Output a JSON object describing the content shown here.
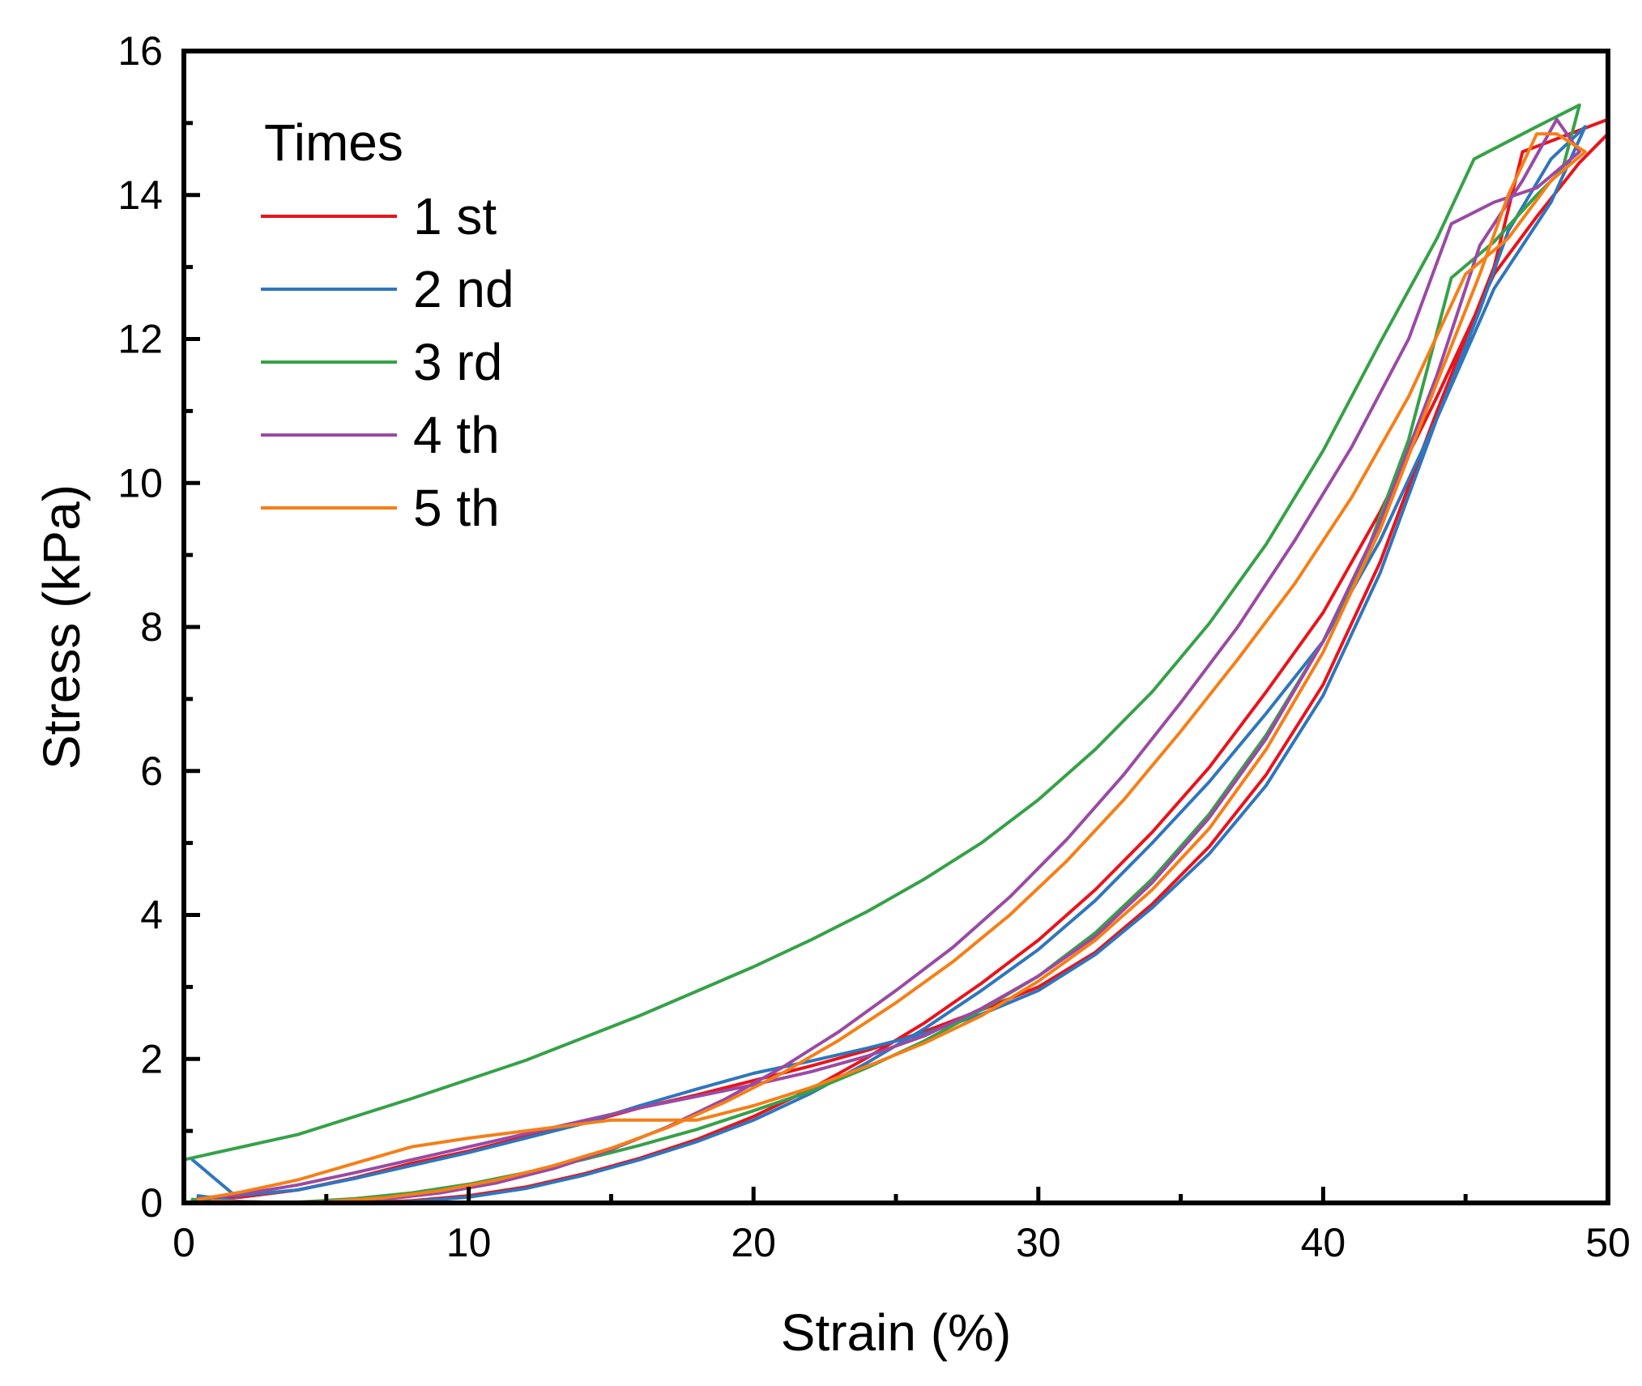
{
  "chart_data": {
    "type": "line",
    "xlabel": "Strain (%)",
    "ylabel": "Stress (kPa)",
    "xlim": [
      0,
      50
    ],
    "ylim": [
      0,
      16
    ],
    "x_ticks": [
      "0",
      "10",
      "20",
      "30",
      "40",
      "50"
    ],
    "y_ticks": [
      "0",
      "2",
      "4",
      "6",
      "8",
      "10",
      "12",
      "14",
      "16"
    ],
    "grid": false,
    "legend_placement": "top-left",
    "legend_title": "Times",
    "series": [
      {
        "name": "1 st",
        "color": "#e8141c",
        "points": [
          [
            0.5,
            0.08
          ],
          [
            2.0,
            0.08
          ],
          [
            4.0,
            0.18
          ],
          [
            6.0,
            0.35
          ],
          [
            8.0,
            0.55
          ],
          [
            10.0,
            0.72
          ],
          [
            12.0,
            0.92
          ],
          [
            14.0,
            1.1
          ],
          [
            16.0,
            1.32
          ],
          [
            18.0,
            1.5
          ],
          [
            20.0,
            1.7
          ],
          [
            22.0,
            1.9
          ],
          [
            24.0,
            2.12
          ],
          [
            26.0,
            2.38
          ],
          [
            28.0,
            2.68
          ],
          [
            30.0,
            3.0
          ],
          [
            32.0,
            3.48
          ],
          [
            34.0,
            4.15
          ],
          [
            36.0,
            4.95
          ],
          [
            38.0,
            5.95
          ],
          [
            40.0,
            7.2
          ],
          [
            42.0,
            8.9
          ],
          [
            44.0,
            11.0
          ],
          [
            46.0,
            13.0
          ],
          [
            47.0,
            14.6
          ],
          [
            48.0,
            14.75
          ],
          [
            49.0,
            14.9
          ],
          [
            50.0,
            15.05
          ],
          [
            50.0,
            14.85
          ],
          [
            49.0,
            14.45
          ],
          [
            47.5,
            13.7
          ],
          [
            46.0,
            12.9
          ],
          [
            44.0,
            11.2
          ],
          [
            42.0,
            9.6
          ],
          [
            40.0,
            8.2
          ],
          [
            38.0,
            7.1
          ],
          [
            36.0,
            6.05
          ],
          [
            34.0,
            5.15
          ],
          [
            32.0,
            4.35
          ],
          [
            30.0,
            3.65
          ],
          [
            28.0,
            3.05
          ],
          [
            26.0,
            2.5
          ],
          [
            24.0,
            2.02
          ],
          [
            22.0,
            1.58
          ],
          [
            20.0,
            1.2
          ],
          [
            18.0,
            0.88
          ],
          [
            16.0,
            0.62
          ],
          [
            14.0,
            0.4
          ],
          [
            12.0,
            0.22
          ],
          [
            10.0,
            0.1
          ],
          [
            8.0,
            0.03
          ],
          [
            6.0,
            0.0
          ],
          [
            4.0,
            0.0
          ],
          [
            2.0,
            0.02
          ],
          [
            0.5,
            0.05
          ]
        ]
      },
      {
        "name": "2 nd",
        "color": "#2f76bd",
        "points": [
          [
            0.3,
            0.6
          ],
          [
            1.8,
            0.1
          ],
          [
            4.0,
            0.18
          ],
          [
            6.0,
            0.34
          ],
          [
            8.0,
            0.52
          ],
          [
            10.0,
            0.7
          ],
          [
            12.0,
            0.9
          ],
          [
            14.0,
            1.1
          ],
          [
            16.0,
            1.35
          ],
          [
            18.0,
            1.58
          ],
          [
            20.0,
            1.8
          ],
          [
            22.0,
            1.97
          ],
          [
            24.0,
            2.15
          ],
          [
            26.0,
            2.35
          ],
          [
            28.0,
            2.62
          ],
          [
            30.0,
            2.95
          ],
          [
            32.0,
            3.45
          ],
          [
            34.0,
            4.1
          ],
          [
            36.0,
            4.85
          ],
          [
            38.0,
            5.8
          ],
          [
            40.0,
            7.05
          ],
          [
            42.0,
            8.75
          ],
          [
            44.0,
            10.9
          ],
          [
            46.0,
            12.7
          ],
          [
            48.0,
            13.9
          ],
          [
            49.2,
            14.95
          ],
          [
            49.2,
            14.95
          ],
          [
            48.0,
            14.5
          ],
          [
            46.5,
            13.5
          ],
          [
            45.5,
            12.4
          ],
          [
            44.0,
            10.9
          ],
          [
            42.0,
            9.2
          ],
          [
            40.0,
            7.8
          ],
          [
            38.0,
            6.8
          ],
          [
            36.0,
            5.85
          ],
          [
            34.0,
            5.0
          ],
          [
            32.0,
            4.2
          ],
          [
            30.0,
            3.52
          ],
          [
            28.0,
            2.95
          ],
          [
            26.0,
            2.42
          ],
          [
            24.0,
            1.95
          ],
          [
            22.0,
            1.52
          ],
          [
            20.0,
            1.15
          ],
          [
            18.0,
            0.85
          ],
          [
            16.0,
            0.6
          ],
          [
            14.0,
            0.38
          ],
          [
            12.0,
            0.2
          ],
          [
            10.0,
            0.08
          ],
          [
            8.0,
            0.02
          ],
          [
            6.0,
            0.0
          ],
          [
            3.5,
            0.0
          ],
          [
            2.0,
            0.02
          ],
          [
            0.5,
            0.1
          ]
        ]
      },
      {
        "name": "3 rd",
        "color": "#36a148",
        "points": [
          [
            0.0,
            0.6
          ],
          [
            4.0,
            0.95
          ],
          [
            8.0,
            1.45
          ],
          [
            12.0,
            1.98
          ],
          [
            16.0,
            2.6
          ],
          [
            20.0,
            3.28
          ],
          [
            22.0,
            3.65
          ],
          [
            24.0,
            4.05
          ],
          [
            26.0,
            4.5
          ],
          [
            28.0,
            5.0
          ],
          [
            30.0,
            5.6
          ],
          [
            32.0,
            6.3
          ],
          [
            34.0,
            7.1
          ],
          [
            36.0,
            8.05
          ],
          [
            38.0,
            9.15
          ],
          [
            40.0,
            10.45
          ],
          [
            42.0,
            11.95
          ],
          [
            44.0,
            13.4
          ],
          [
            45.3,
            14.5
          ],
          [
            47.5,
            14.95
          ],
          [
            49.0,
            15.25
          ],
          [
            49.0,
            15.25
          ],
          [
            48.4,
            14.35
          ],
          [
            47.5,
            14.0
          ],
          [
            46.0,
            13.35
          ],
          [
            44.5,
            12.85
          ],
          [
            43.0,
            10.6
          ],
          [
            41.5,
            9.0
          ],
          [
            40.0,
            7.8
          ],
          [
            38.0,
            6.5
          ],
          [
            36.0,
            5.4
          ],
          [
            34.0,
            4.5
          ],
          [
            32.0,
            3.75
          ],
          [
            30.0,
            3.15
          ],
          [
            28.0,
            2.68
          ],
          [
            26.0,
            2.25
          ],
          [
            24.0,
            1.88
          ],
          [
            22.0,
            1.55
          ],
          [
            20.0,
            1.28
          ],
          [
            18.0,
            1.02
          ],
          [
            16.0,
            0.8
          ],
          [
            14.0,
            0.6
          ],
          [
            12.0,
            0.42
          ],
          [
            10.0,
            0.26
          ],
          [
            8.0,
            0.14
          ],
          [
            6.0,
            0.06
          ],
          [
            4.0,
            0.01
          ],
          [
            2.0,
            0.0
          ],
          [
            0.3,
            0.05
          ]
        ]
      },
      {
        "name": "4 th",
        "color": "#9a4aa4",
        "points": [
          [
            0.5,
            0.05
          ],
          [
            2.0,
            0.12
          ],
          [
            4.0,
            0.25
          ],
          [
            6.0,
            0.42
          ],
          [
            8.0,
            0.6
          ],
          [
            10.0,
            0.78
          ],
          [
            12.0,
            0.96
          ],
          [
            14.0,
            1.14
          ],
          [
            16.0,
            1.32
          ],
          [
            18.0,
            1.48
          ],
          [
            20.0,
            1.64
          ],
          [
            22.0,
            1.82
          ],
          [
            24.0,
            2.04
          ],
          [
            26.0,
            2.32
          ],
          [
            28.0,
            2.7
          ],
          [
            30.0,
            3.15
          ],
          [
            32.0,
            3.7
          ],
          [
            34.0,
            4.45
          ],
          [
            36.0,
            5.35
          ],
          [
            38.0,
            6.45
          ],
          [
            40.0,
            7.8
          ],
          [
            42.0,
            9.45
          ],
          [
            44.0,
            11.5
          ],
          [
            45.5,
            13.3
          ],
          [
            47.0,
            14.2
          ],
          [
            48.2,
            15.05
          ],
          [
            49.0,
            14.6
          ],
          [
            49.0,
            14.6
          ],
          [
            47.5,
            14.1
          ],
          [
            46.0,
            13.9
          ],
          [
            44.5,
            13.6
          ],
          [
            43.0,
            12.0
          ],
          [
            41.0,
            10.5
          ],
          [
            39.0,
            9.2
          ],
          [
            37.0,
            8.0
          ],
          [
            35.0,
            6.95
          ],
          [
            33.0,
            5.95
          ],
          [
            31.0,
            5.05
          ],
          [
            29.0,
            4.25
          ],
          [
            27.0,
            3.55
          ],
          [
            25.0,
            2.95
          ],
          [
            23.0,
            2.38
          ],
          [
            21.0,
            1.88
          ],
          [
            19.0,
            1.44
          ],
          [
            17.0,
            1.06
          ],
          [
            15.0,
            0.74
          ],
          [
            13.0,
            0.48
          ],
          [
            11.0,
            0.28
          ],
          [
            9.0,
            0.14
          ],
          [
            7.0,
            0.05
          ],
          [
            5.0,
            0.01
          ],
          [
            3.0,
            0.0
          ],
          [
            1.0,
            0.02
          ]
        ]
      },
      {
        "name": "5 th",
        "color": "#f57f17",
        "points": [
          [
            0.5,
            0.05
          ],
          [
            2.0,
            0.15
          ],
          [
            4.0,
            0.32
          ],
          [
            6.0,
            0.55
          ],
          [
            8.0,
            0.78
          ],
          [
            10.0,
            0.9
          ],
          [
            12.0,
            1.0
          ],
          [
            14.0,
            1.1
          ],
          [
            15.0,
            1.15
          ],
          [
            17.0,
            1.15
          ],
          [
            18.0,
            1.15
          ],
          [
            20.0,
            1.35
          ],
          [
            22.0,
            1.6
          ],
          [
            24.0,
            1.9
          ],
          [
            26.0,
            2.22
          ],
          [
            28.0,
            2.6
          ],
          [
            30.0,
            3.08
          ],
          [
            32.0,
            3.65
          ],
          [
            34.0,
            4.35
          ],
          [
            36.0,
            5.2
          ],
          [
            38.0,
            6.3
          ],
          [
            40.0,
            7.65
          ],
          [
            42.0,
            9.35
          ],
          [
            44.0,
            11.4
          ],
          [
            45.5,
            12.9
          ],
          [
            46.5,
            14.0
          ],
          [
            47.5,
            14.85
          ],
          [
            48.2,
            14.85
          ],
          [
            49.2,
            14.6
          ],
          [
            49.2,
            14.6
          ],
          [
            48.0,
            14.2
          ],
          [
            46.5,
            13.4
          ],
          [
            45.0,
            12.9
          ],
          [
            43.0,
            11.2
          ],
          [
            41.0,
            9.8
          ],
          [
            39.0,
            8.6
          ],
          [
            37.0,
            7.55
          ],
          [
            35.0,
            6.55
          ],
          [
            33.0,
            5.6
          ],
          [
            31.0,
            4.75
          ],
          [
            29.0,
            4.0
          ],
          [
            27.0,
            3.35
          ],
          [
            25.0,
            2.78
          ],
          [
            23.0,
            2.26
          ],
          [
            21.0,
            1.8
          ],
          [
            19.0,
            1.4
          ],
          [
            17.0,
            1.05
          ],
          [
            15.0,
            0.76
          ],
          [
            13.0,
            0.52
          ],
          [
            11.0,
            0.32
          ],
          [
            9.0,
            0.17
          ],
          [
            7.0,
            0.07
          ],
          [
            5.0,
            0.02
          ],
          [
            3.0,
            0.0
          ],
          [
            1.0,
            0.03
          ]
        ]
      }
    ]
  }
}
